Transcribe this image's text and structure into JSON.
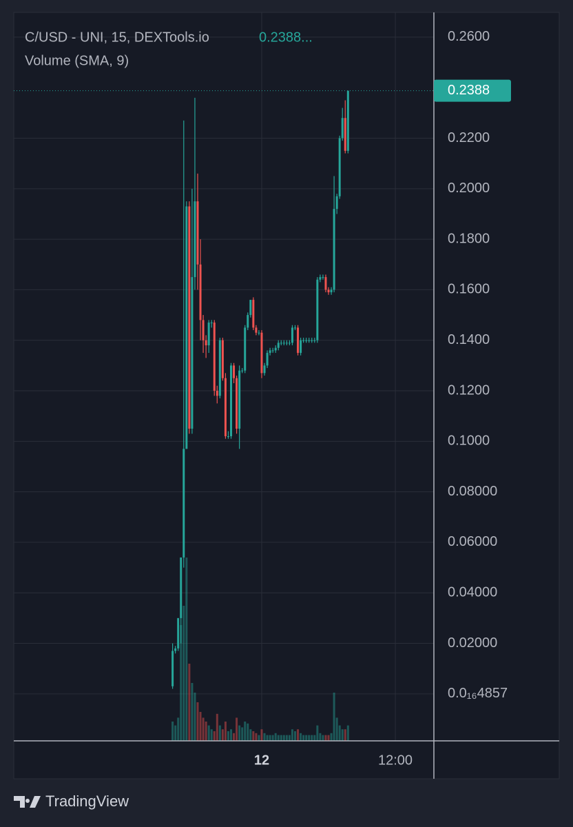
{
  "chart_data": {
    "type": "candlestick",
    "title": "C/USD - UNI, 15, DEXTools.io",
    "last_price_header": "0.2388...",
    "subtitle": "Volume (SMA, 9)",
    "last_price": {
      "value": 0.2388,
      "label": "0.2388"
    },
    "up_color": "#26a69a",
    "down_color": "#ef5350",
    "grid": true,
    "x": [
      -8,
      -7.75,
      -7.5,
      -7.25,
      -7,
      -6.75,
      -6.5,
      -6.25,
      -6,
      -5.75,
      -5.5,
      -5.25,
      -5,
      -4.75,
      -4.5,
      -4.25,
      -4,
      -3.75,
      -3.5,
      -3.25,
      -3,
      -2.75,
      -2.5,
      -2.25,
      -2,
      -1.75,
      -1.5,
      -1.25,
      -1,
      -0.75,
      -0.5,
      -0.25,
      0,
      0.25,
      0.5,
      0.75,
      1,
      1.25,
      1.5,
      1.75,
      2,
      2.25,
      2.5,
      2.75,
      3,
      3.25,
      3.5,
      3.75,
      4,
      4.25,
      4.5,
      4.75,
      5,
      5.25,
      5.5,
      5.75,
      6,
      6.25,
      6.5,
      6.75,
      7,
      7.25,
      7.5,
      7.75
    ],
    "open": [
      0.003,
      0.017,
      0.018,
      0.03,
      0.054,
      0.097,
      0.193,
      0.105,
      0.165,
      0.195,
      0.17,
      0.148,
      0.14,
      0.138,
      0.147,
      0.147,
      0.12,
      0.118,
      0.14,
      0.125,
      0.102,
      0.102,
      0.13,
      0.125,
      0.105,
      0.128,
      0.128,
      0.145,
      0.15,
      0.156,
      0.145,
      0.143,
      0.143,
      0.127,
      0.13,
      0.135,
      0.136,
      0.136,
      0.137,
      0.139,
      0.139,
      0.139,
      0.139,
      0.139,
      0.145,
      0.145,
      0.135,
      0.14,
      0.14,
      0.14,
      0.14,
      0.14,
      0.14,
      0.164,
      0.165,
      0.165,
      0.16,
      0.159,
      0.16,
      0.192,
      0.197,
      0.22,
      0.228,
      0.215
    ],
    "high": [
      0.02,
      0.019,
      0.03,
      0.054,
      0.227,
      0.195,
      0.195,
      0.2,
      0.236,
      0.206,
      0.18,
      0.15,
      0.142,
      0.148,
      0.148,
      0.148,
      0.122,
      0.141,
      0.141,
      0.127,
      0.104,
      0.131,
      0.131,
      0.126,
      0.13,
      0.129,
      0.146,
      0.151,
      0.156,
      0.157,
      0.146,
      0.144,
      0.144,
      0.131,
      0.136,
      0.137,
      0.137,
      0.138,
      0.14,
      0.14,
      0.14,
      0.14,
      0.14,
      0.146,
      0.146,
      0.146,
      0.141,
      0.141,
      0.141,
      0.141,
      0.141,
      0.141,
      0.165,
      0.166,
      0.166,
      0.166,
      0.161,
      0.161,
      0.205,
      0.198,
      0.221,
      0.232,
      0.235,
      0.2388
    ],
    "low": [
      0.002,
      0.016,
      0.017,
      0.02,
      0.05,
      0.097,
      0.103,
      0.103,
      0.16,
      0.16,
      0.14,
      0.135,
      0.133,
      0.135,
      0.145,
      0.118,
      0.115,
      0.117,
      0.124,
      0.101,
      0.101,
      0.101,
      0.123,
      0.103,
      0.097,
      0.127,
      0.127,
      0.144,
      0.149,
      0.144,
      0.142,
      0.142,
      0.125,
      0.126,
      0.129,
      0.134,
      0.135,
      0.135,
      0.136,
      0.138,
      0.138,
      0.138,
      0.138,
      0.138,
      0.144,
      0.134,
      0.134,
      0.139,
      0.139,
      0.139,
      0.139,
      0.139,
      0.139,
      0.163,
      0.164,
      0.159,
      0.158,
      0.158,
      0.159,
      0.19,
      0.196,
      0.219,
      0.214,
      0.214
    ],
    "close": [
      0.017,
      0.018,
      0.03,
      0.054,
      0.097,
      0.193,
      0.105,
      0.165,
      0.195,
      0.17,
      0.148,
      0.14,
      0.138,
      0.147,
      0.147,
      0.12,
      0.118,
      0.14,
      0.125,
      0.102,
      0.102,
      0.13,
      0.125,
      0.105,
      0.128,
      0.128,
      0.145,
      0.15,
      0.156,
      0.145,
      0.143,
      0.143,
      0.127,
      0.13,
      0.135,
      0.136,
      0.136,
      0.137,
      0.139,
      0.139,
      0.139,
      0.139,
      0.139,
      0.145,
      0.145,
      0.135,
      0.14,
      0.14,
      0.14,
      0.14,
      0.14,
      0.14,
      0.164,
      0.165,
      0.165,
      0.16,
      0.159,
      0.16,
      0.192,
      0.197,
      0.22,
      0.228,
      0.215,
      0.2388
    ],
    "volume": [
      10,
      8,
      12,
      60,
      70,
      95,
      40,
      30,
      25,
      20,
      15,
      12,
      10,
      8,
      6,
      5,
      14,
      8,
      6,
      10,
      5,
      6,
      4,
      12,
      8,
      7,
      10,
      9,
      6,
      5,
      4,
      3,
      6,
      4,
      3,
      3,
      3,
      4,
      3,
      3,
      3,
      3,
      3,
      6,
      5,
      6,
      4,
      3,
      3,
      3,
      3,
      3,
      8,
      4,
      3,
      3,
      3,
      4,
      25,
      12,
      8,
      6,
      6,
      8
    ],
    "volume_lim": [
      0,
      100
    ],
    "xlim": [
      -22.26,
      15.46
    ],
    "xticks": [
      {
        "value": 0,
        "label": "12"
      },
      {
        "value": 12,
        "label": "12:00"
      }
    ],
    "ylim": [
      -0.0186,
      0.2698
    ],
    "yticks": [
      {
        "value": 4.857e-17,
        "label": "0.0₁₆4857"
      },
      {
        "value": 0.02,
        "label": "0.02000"
      },
      {
        "value": 0.04,
        "label": "0.04000"
      },
      {
        "value": 0.06,
        "label": "0.06000"
      },
      {
        "value": 0.08,
        "label": "0.08000"
      },
      {
        "value": 0.1,
        "label": "0.1000"
      },
      {
        "value": 0.12,
        "label": "0.1200"
      },
      {
        "value": 0.14,
        "label": "0.1400"
      },
      {
        "value": 0.16,
        "label": "0.1600"
      },
      {
        "value": 0.18,
        "label": "0.1800"
      },
      {
        "value": 0.2,
        "label": "0.2000"
      },
      {
        "value": 0.22,
        "label": "0.2200"
      },
      {
        "value": 0.26,
        "label": "0.2600"
      }
    ]
  },
  "footer": {
    "brand": "TradingView"
  }
}
